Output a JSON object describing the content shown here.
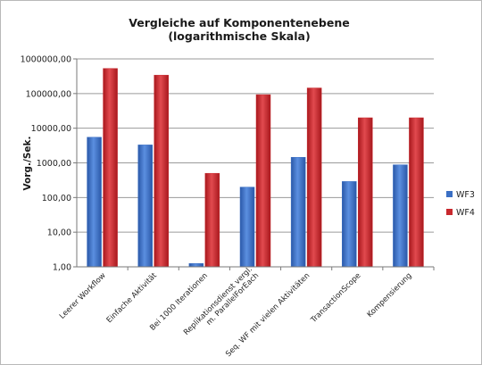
{
  "chart_data": {
    "type": "bar",
    "title": "Vergleiche auf Komponentenebene",
    "subtitle": "(logarithmische Skala)",
    "ylabel": "Vorg./Sek.",
    "xlabel": "",
    "yscale": "log",
    "ylim": [
      1,
      1000000
    ],
    "yticks": [
      "1,00",
      "10,00",
      "100,00",
      "1000,00",
      "10000,00",
      "100000,00",
      "1000000,00"
    ],
    "grid": true,
    "legend_position": "right",
    "categories": [
      "Leerer Workflow",
      "Einfache Aktivität",
      "Bei 1000 Iterationen",
      [
        "Replikationsdienst vergl.",
        "m. ParallelForEach"
      ],
      "Seq. WF mit vielen Aktivitäten",
      "TransactionScope",
      "Kompensierung"
    ],
    "series": [
      {
        "name": "WF3",
        "color": "#3a6fc4",
        "values": [
          5500,
          3300,
          1.25,
          200,
          1450,
          290,
          880
        ]
      },
      {
        "name": "WF4",
        "color": "#c8282d",
        "values": [
          530000,
          340000,
          500,
          93000,
          145000,
          20000,
          20000
        ]
      }
    ]
  }
}
